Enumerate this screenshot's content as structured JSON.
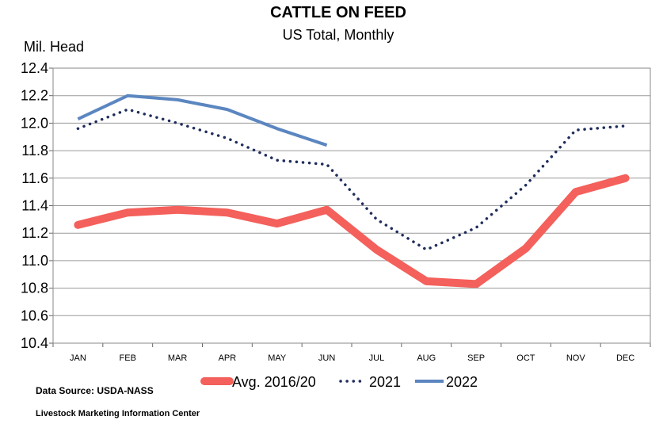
{
  "chart_data": {
    "type": "line",
    "title": "CATTLE ON FEED",
    "subtitle": "US Total, Monthly",
    "ylabel": "Mil. Head",
    "xlabel": "",
    "categories": [
      "JAN",
      "FEB",
      "MAR",
      "APR",
      "MAY",
      "JUN",
      "JUL",
      "AUG",
      "SEP",
      "OCT",
      "NOV",
      "DEC"
    ],
    "ylim": [
      10.4,
      12.4
    ],
    "yticks": [
      "10.4",
      "10.6",
      "10.8",
      "11.0",
      "11.2",
      "11.4",
      "11.6",
      "11.8",
      "12.0",
      "12.2",
      "12.4"
    ],
    "grid": true,
    "legend_position": "bottom",
    "series": [
      {
        "name": "Avg. 2016/20",
        "style": "thick-solid",
        "color": "#f4605b",
        "values": [
          11.26,
          11.35,
          11.37,
          11.35,
          11.27,
          11.37,
          11.08,
          10.85,
          10.83,
          11.09,
          11.5,
          11.6
        ]
      },
      {
        "name": "2021",
        "style": "dotted",
        "color": "#1f2d5c",
        "values": [
          11.96,
          12.1,
          12.0,
          11.89,
          11.73,
          11.7,
          11.3,
          11.08,
          11.24,
          11.55,
          11.95,
          11.98
        ]
      },
      {
        "name": "2022",
        "style": "solid",
        "color": "#5b86c0",
        "values": [
          12.03,
          12.2,
          12.17,
          12.1,
          11.96,
          11.84,
          null,
          null,
          null,
          null,
          null,
          null
        ]
      }
    ]
  },
  "footer": {
    "source": "Data Source:  USDA-NASS",
    "org": "Livestock Marketing Information Center"
  }
}
